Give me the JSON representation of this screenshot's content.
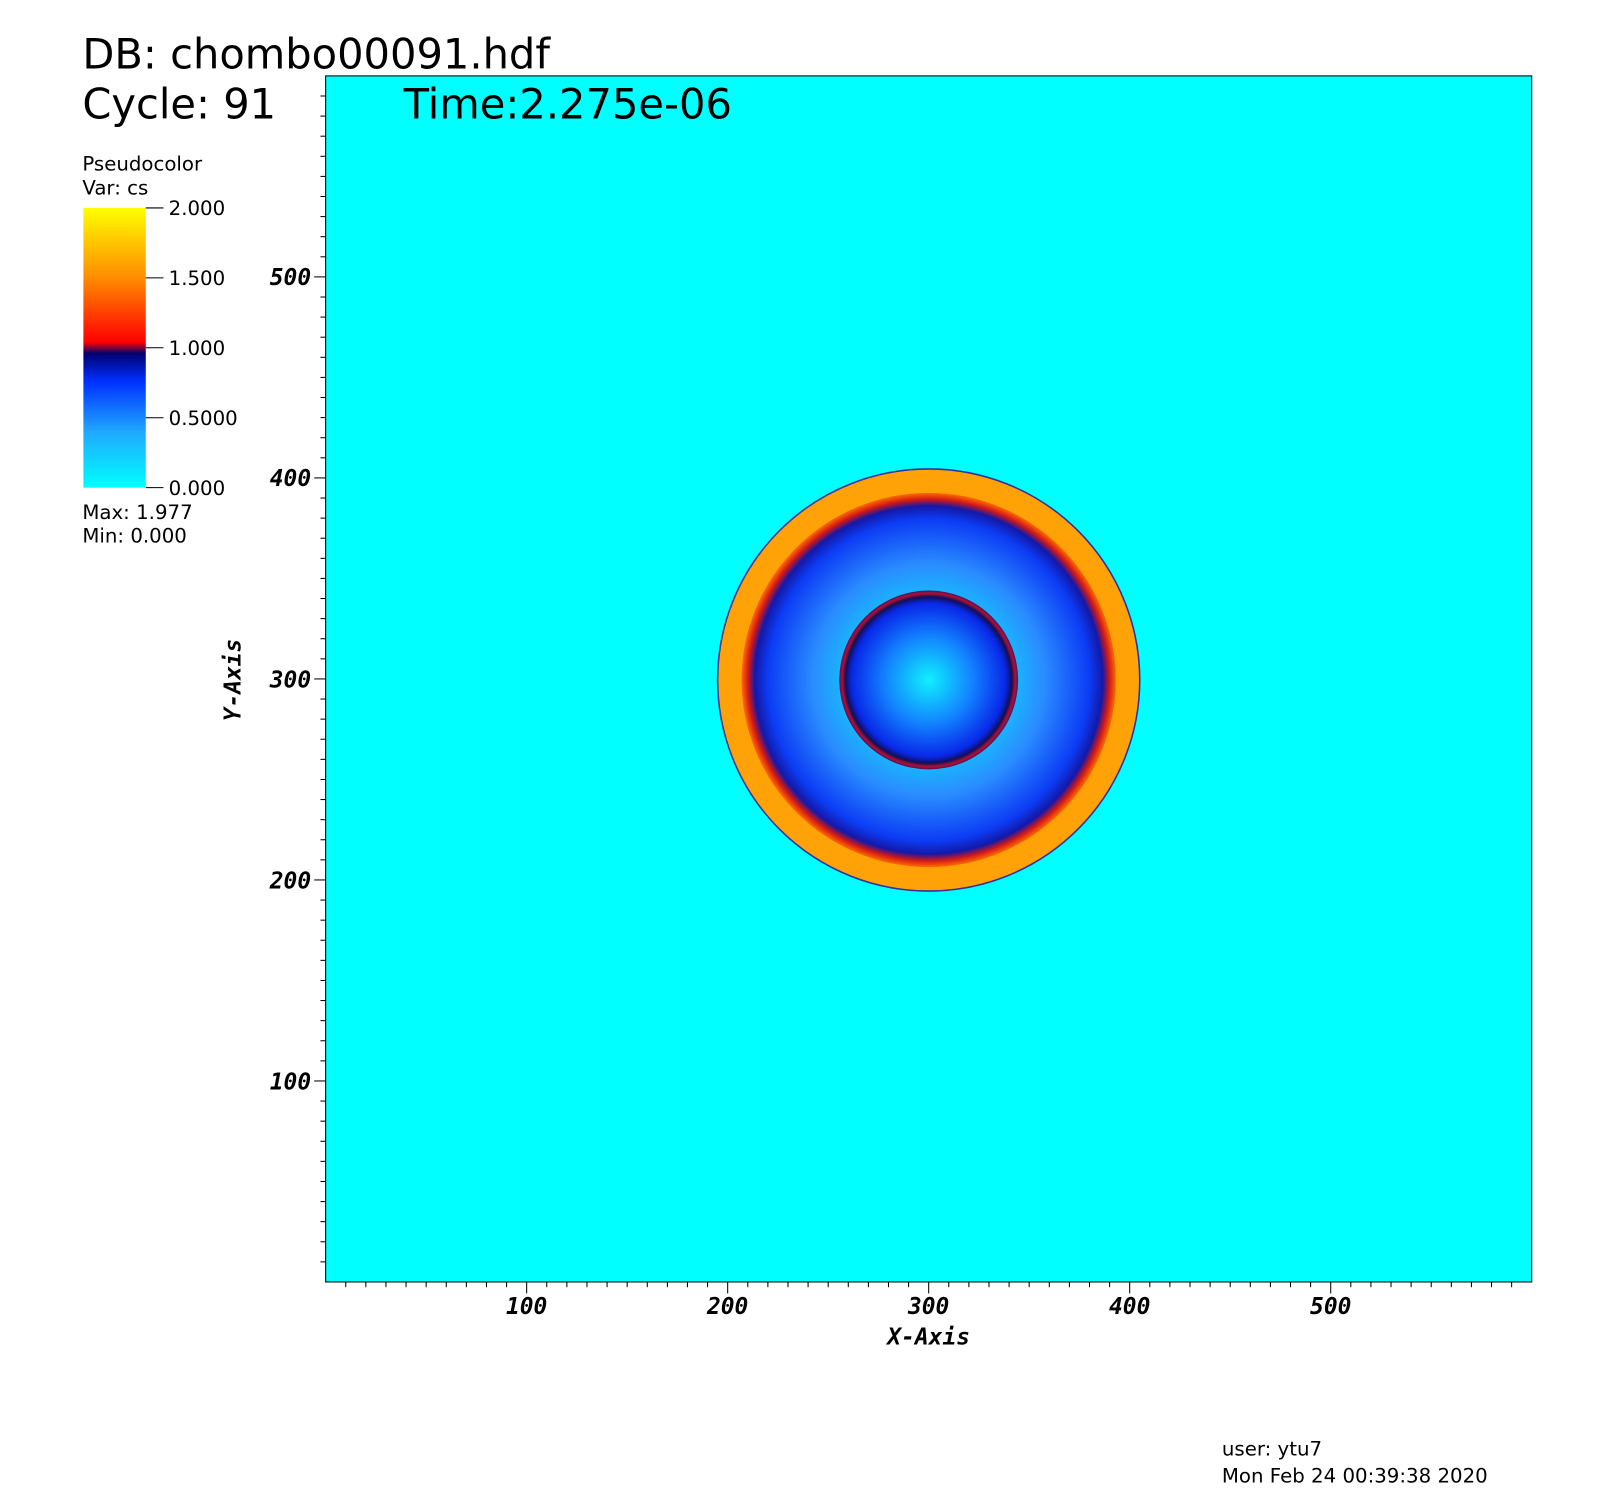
{
  "chart_data": {
    "type": "pseudocolor",
    "db": "DB: chombo00091.hdf",
    "cycle": "Cycle: 91",
    "time": "Time:2.275e-06",
    "x_label": "X-Axis",
    "y_label": "Y-Axis",
    "xlim": [
      0,
      600
    ],
    "ylim": [
      0,
      600
    ],
    "xticks": [
      100,
      200,
      300,
      400,
      500
    ],
    "yticks": [
      100,
      200,
      300,
      400,
      500
    ],
    "xminorticks": [
      10,
      20,
      30,
      40,
      50,
      60,
      70,
      80,
      90,
      110,
      120,
      130,
      140,
      150,
      160,
      170,
      180,
      190,
      210,
      220,
      230,
      240,
      250,
      260,
      270,
      280,
      290,
      310,
      320,
      330,
      340,
      350,
      360,
      370,
      380,
      390,
      410,
      420,
      430,
      440,
      450,
      460,
      470,
      480,
      490,
      510,
      520,
      530,
      540,
      550,
      560,
      570,
      580,
      590
    ],
    "yminorticks": [
      10,
      20,
      30,
      40,
      50,
      60,
      70,
      80,
      90,
      110,
      120,
      130,
      140,
      150,
      160,
      170,
      180,
      190,
      210,
      220,
      230,
      240,
      250,
      260,
      270,
      280,
      290,
      310,
      320,
      330,
      340,
      350,
      360,
      370,
      380,
      390,
      410,
      420,
      430,
      440,
      450,
      460,
      470,
      480,
      490,
      510,
      520,
      530,
      540,
      550,
      560,
      570,
      580,
      590
    ],
    "legend": {
      "title": "Pseudocolor",
      "var": "Var: cs",
      "lim": [
        0,
        2
      ],
      "ticks": [
        {
          "value": 2,
          "label": "2.000"
        },
        {
          "value": 1.5,
          "label": "1.500"
        },
        {
          "value": 1,
          "label": "1.000"
        },
        {
          "value": 0.5,
          "label": "0.5000"
        },
        {
          "value": 0,
          "label": "0.000"
        }
      ],
      "max": "Max:  1.977",
      "min": "Min:  0.000"
    },
    "user": "user: ytu7",
    "date": "Mon Feb 24 00:39:38 2020"
  }
}
